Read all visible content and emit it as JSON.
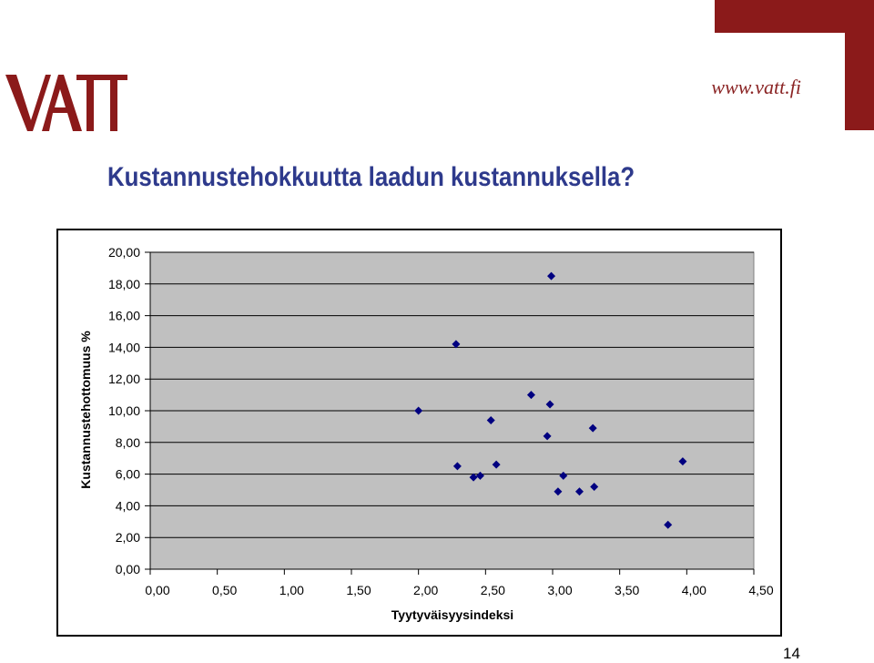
{
  "header": {
    "brand_logo": "VATT",
    "website": "www.vatt.fi",
    "brand_color": "#8b1a1a"
  },
  "slide": {
    "title": "Kustannustehokkuutta laadun kustannuksella?",
    "title_color": "#2e3a8c",
    "page_number": "14"
  },
  "chart_data": {
    "type": "scatter",
    "title": "",
    "xlabel": "Tyytyväisyysindeksi",
    "ylabel": "Kustannustehottomuus %",
    "xlim": [
      0,
      4.5
    ],
    "ylim": [
      0,
      20
    ],
    "x_ticks": [
      "0,00",
      "0,50",
      "1,00",
      "1,50",
      "2,00",
      "2,50",
      "3,00",
      "3,50",
      "4,00",
      "4,50"
    ],
    "y_ticks": [
      "0,00",
      "2,00",
      "4,00",
      "6,00",
      "8,00",
      "10,00",
      "12,00",
      "14,00",
      "16,00",
      "18,00",
      "20,00"
    ],
    "grid": "horizontal",
    "plot_background": "#c0c0c0",
    "marker_color": "#000080",
    "marker": "diamond",
    "series": [
      {
        "points": [
          {
            "x": 2.0,
            "y": 10.0
          },
          {
            "x": 2.28,
            "y": 14.2
          },
          {
            "x": 2.29,
            "y": 6.5
          },
          {
            "x": 2.41,
            "y": 5.8
          },
          {
            "x": 2.46,
            "y": 5.9
          },
          {
            "x": 2.54,
            "y": 9.4
          },
          {
            "x": 2.58,
            "y": 6.6
          },
          {
            "x": 2.84,
            "y": 11.0
          },
          {
            "x": 2.96,
            "y": 8.4
          },
          {
            "x": 2.98,
            "y": 10.4
          },
          {
            "x": 2.99,
            "y": 18.5
          },
          {
            "x": 3.04,
            "y": 4.9
          },
          {
            "x": 3.08,
            "y": 5.9
          },
          {
            "x": 3.2,
            "y": 4.9
          },
          {
            "x": 3.3,
            "y": 8.9
          },
          {
            "x": 3.31,
            "y": 5.2
          },
          {
            "x": 3.86,
            "y": 2.8
          },
          {
            "x": 3.97,
            "y": 6.8
          }
        ]
      }
    ]
  }
}
